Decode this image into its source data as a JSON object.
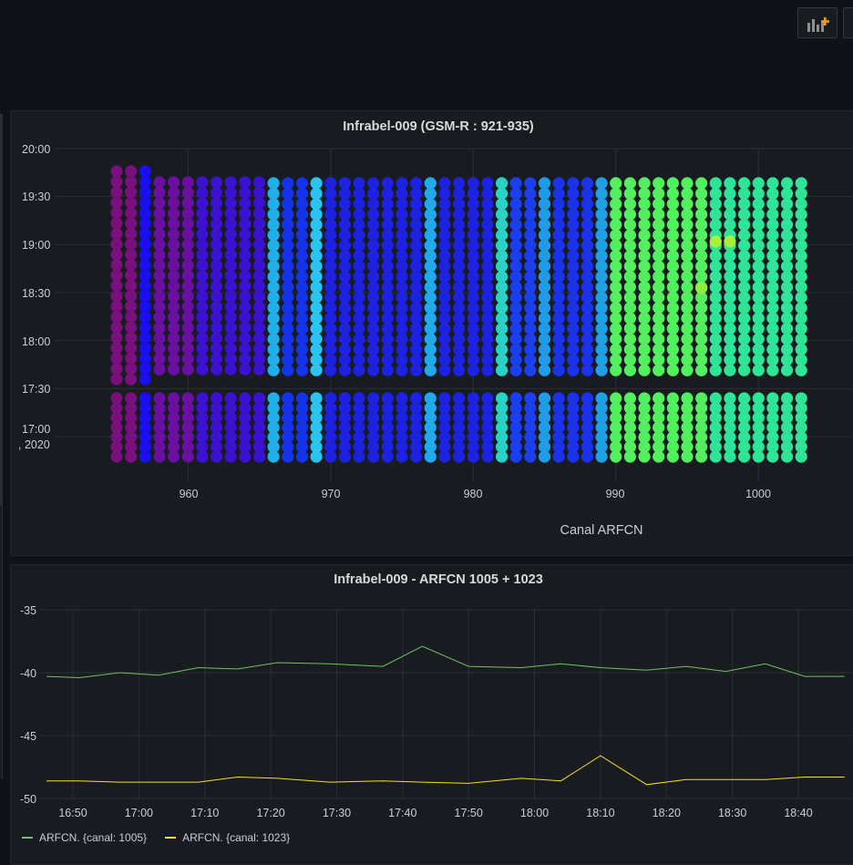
{
  "toolbar": {
    "add_panel_icon": "add-panel-icon"
  },
  "heatmap_panel": {
    "title": "Infrabel-009 (GSM-R : 921-935)",
    "x_axis_label": "Canal ARFCN",
    "y_ticks": [
      "20:00",
      "19:30",
      "19:00",
      "18:30",
      "18:00",
      "17:30",
      "17:00"
    ],
    "y_date_label": ", 2020",
    "x_ticks": [
      "960",
      "970",
      "980",
      "990",
      "1000"
    ]
  },
  "line_panel": {
    "title": "Infrabel-009 - ARFCN 1005 + 1023",
    "y_ticks": [
      "-35",
      "-40",
      "-45",
      "-50"
    ],
    "x_ticks": [
      "16:50",
      "17:00",
      "17:10",
      "17:20",
      "17:30",
      "17:40",
      "17:50",
      "18:00",
      "18:10",
      "18:20",
      "18:30",
      "18:40"
    ],
    "legend": [
      {
        "label": "ARFCN. {canal: 1005}",
        "color": "#73bf69"
      },
      {
        "label": "ARFCN. {canal: 1023}",
        "color": "#fade2a"
      }
    ]
  },
  "chart_data": [
    {
      "type": "heatmap",
      "title": "Infrabel-009 (GSM-R : 921-935)",
      "xlabel": "Canal ARFCN",
      "ylabel": "",
      "x_range": [
        955,
        1003
      ],
      "y_range": [
        "16:45",
        "20:00"
      ],
      "rows": [
        {
          "band": "17:45-19:45",
          "segments": [
            {
              "from": 955,
              "to": 956,
              "color": "#7a0f7e"
            },
            {
              "from": 957,
              "to": 957,
              "color": "#1a0ff0"
            },
            {
              "from": 958,
              "to": 960,
              "color": "#6a10a0"
            },
            {
              "from": 961,
              "to": 965,
              "color": "#3b12cf"
            },
            {
              "from": 966,
              "to": 966,
              "color": "#1fb0ea"
            },
            {
              "from": 967,
              "to": 968,
              "color": "#1533ea"
            },
            {
              "from": 969,
              "to": 969,
              "color": "#29c5f0"
            },
            {
              "from": 970,
              "to": 976,
              "color": "#1d22e0"
            },
            {
              "from": 977,
              "to": 977,
              "color": "#21a9ec"
            },
            {
              "from": 978,
              "to": 981,
              "color": "#1d22e0"
            },
            {
              "from": 982,
              "to": 982,
              "color": "#2ad1c5"
            },
            {
              "from": 983,
              "to": 984,
              "color": "#1b3fef"
            },
            {
              "from": 985,
              "to": 985,
              "color": "#1f9ce8"
            },
            {
              "from": 986,
              "to": 988,
              "color": "#1a33ea"
            },
            {
              "from": 989,
              "to": 989,
              "color": "#1f9fe4"
            },
            {
              "from": 990,
              "to": 996,
              "color": "#52f05e"
            },
            {
              "from": 997,
              "to": 1003,
              "color": "#2de497"
            }
          ]
        }
      ]
    },
    {
      "type": "line",
      "title": "Infrabel-009 - ARFCN 1005 + 1023",
      "x": [
        "16:46",
        "16:51",
        "16:57",
        "17:03",
        "17:09",
        "17:15",
        "17:21",
        "17:29",
        "17:37",
        "17:43",
        "17:50",
        "17:58",
        "18:04",
        "18:10",
        "18:17",
        "18:23",
        "18:29",
        "18:35",
        "18:41",
        "18:47"
      ],
      "ylim": [
        -50,
        -35
      ],
      "series": [
        {
          "name": "ARFCN. {canal: 1005}",
          "values": [
            -40.3,
            -40.4,
            -40.0,
            -40.2,
            -39.6,
            -39.7,
            -39.2,
            -39.3,
            -39.5,
            -37.9,
            -39.5,
            -39.6,
            -39.3,
            -39.6,
            -39.8,
            -39.5,
            -39.9,
            -39.3,
            -40.3,
            -40.3
          ]
        },
        {
          "name": "ARFCN. {canal: 1023}",
          "values": [
            -48.6,
            -48.6,
            -48.7,
            -48.7,
            -48.7,
            -48.3,
            -48.4,
            -48.7,
            -48.6,
            -48.7,
            -48.8,
            -48.4,
            -48.6,
            -46.6,
            -48.9,
            -48.5,
            -48.5,
            -48.5,
            -48.3,
            -48.3
          ]
        }
      ]
    }
  ]
}
